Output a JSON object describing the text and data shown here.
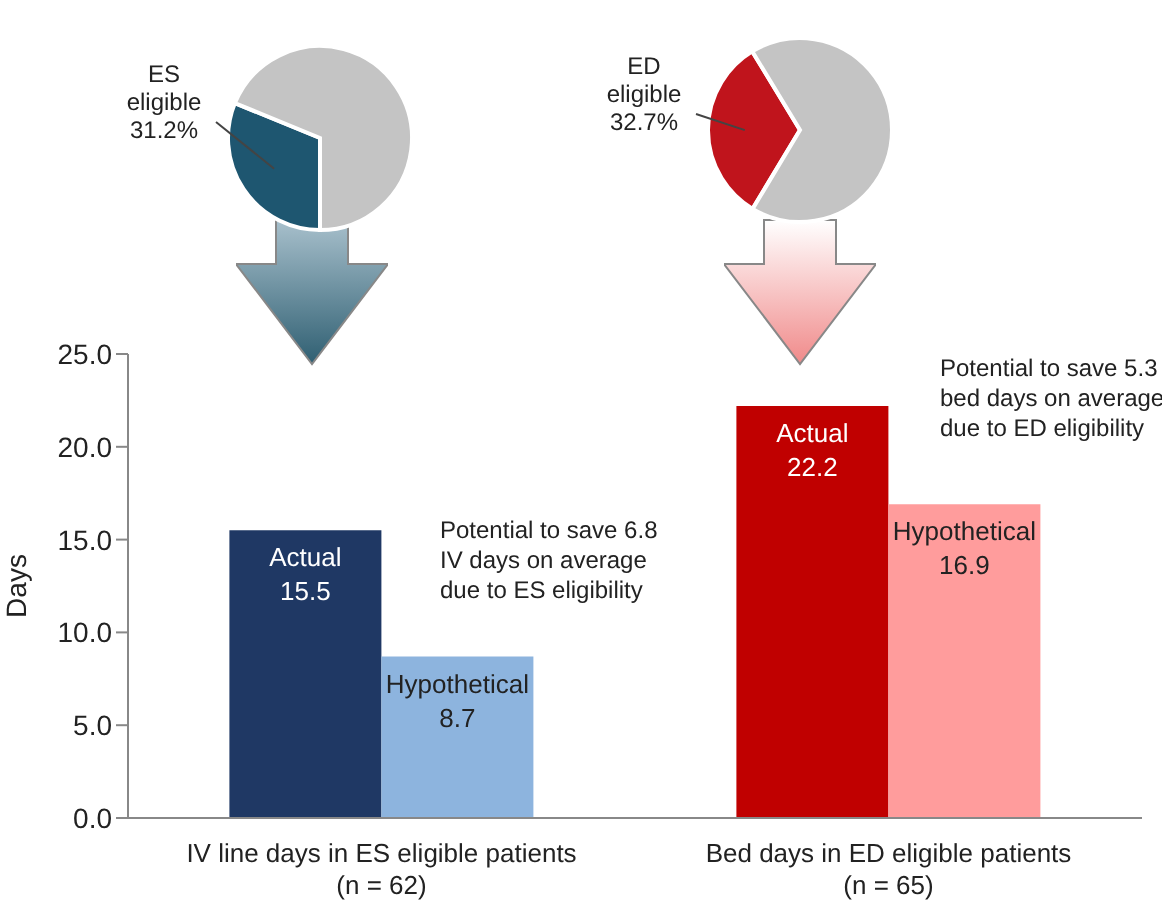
{
  "chart_data": [
    {
      "type": "pie",
      "categories": [
        "ES eligible",
        null
      ],
      "values": [
        31.2,
        68.8
      ],
      "colors": [
        "#1e5670",
        "#c4c4c4"
      ],
      "value_labels": [
        "31.2%",
        null
      ]
    },
    {
      "type": "pie",
      "categories": [
        "ED eligible",
        null
      ],
      "values": [
        32.7,
        67.3
      ],
      "colors": [
        "#c0141c",
        "#c4c4c4"
      ],
      "value_labels": [
        "32.7%",
        null
      ]
    },
    {
      "type": "bar",
      "categories": [
        "IV line days in ES eligible patients\n(n = 62)",
        "Bed days in ED eligible patients\n(n = 65)"
      ],
      "series": [
        {
          "name": "Actual",
          "values": [
            15.5,
            22.2
          ],
          "colors": [
            "#1f3864",
            "#c00000"
          ]
        },
        {
          "name": "Hypothetical",
          "values": [
            8.7,
            16.9
          ],
          "colors": [
            "#8db4de",
            "#ff9c9c"
          ]
        }
      ],
      "data_labels": true,
      "ylabel": "Days",
      "ylim": [
        0,
        25
      ],
      "yticks": [
        {
          "value": 0,
          "label": "0.0"
        },
        {
          "value": 5,
          "label": "5.0"
        },
        {
          "value": 10,
          "label": "10.0"
        },
        {
          "value": 15,
          "label": "15.0"
        },
        {
          "value": 20,
          "label": "20.0"
        },
        {
          "value": 25,
          "label": "25.0"
        }
      ],
      "annotations": [
        "Potential to save 6.8 IV days on average due to ES eligibility",
        "Potential to save 5.3 bed days on average due to ED eligibility"
      ]
    }
  ]
}
